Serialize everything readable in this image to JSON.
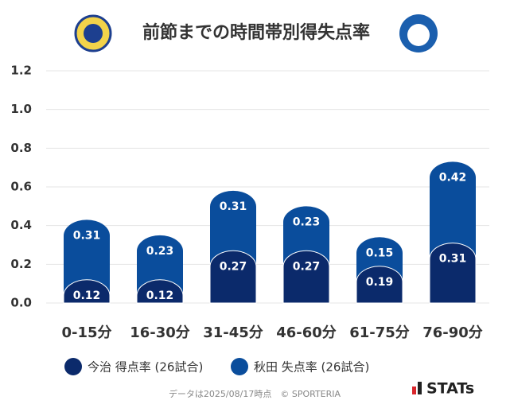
{
  "chart_data": {
    "type": "stacked_bar",
    "title": "前節までの時間帯別得失点率",
    "categories": [
      "0-15分",
      "16-30分",
      "31-45分",
      "46-60分",
      "61-75分",
      "76-90分"
    ],
    "series": [
      {
        "name": "今治 得点率 (26試合)",
        "color": "#0b2a6b",
        "values": [
          0.12,
          0.12,
          0.27,
          0.27,
          0.19,
          0.31
        ]
      },
      {
        "name": "秋田 失点率 (26試合)",
        "color": "#0a4d9c",
        "values": [
          0.31,
          0.23,
          0.31,
          0.23,
          0.15,
          0.42
        ]
      }
    ],
    "ylim": [
      0,
      1.2
    ],
    "yticks": [
      {
        "value": 0,
        "label": "0.0"
      },
      0.2,
      0.4,
      0.6,
      0.8,
      {
        "value": 1,
        "label": "1.0"
      },
      1.2
    ],
    "grid": true,
    "footer": "データは2025/08/17時点　© SPORTERIA",
    "brand": "STATs"
  }
}
